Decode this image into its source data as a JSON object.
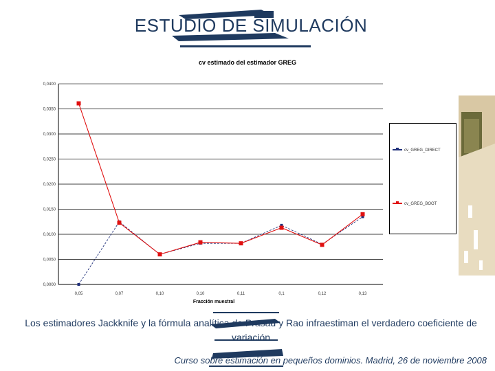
{
  "slide": {
    "title": "ESTUDIO DE SIMULACIÓN",
    "caption": "Los estimadores Jackknife y la fórmula analítica de Prasad y Rao infraestiman el verdadero coeficiente de variación",
    "footer": "Curso sobre estimación en pequeños dominios. Madrid, 26 de noviembre 2008"
  },
  "colors": {
    "title": "#1f3a5f",
    "series_direct": "#1f2f7a",
    "series_greg": "#e01010",
    "gridline": "#000000"
  },
  "chart_data": {
    "type": "line",
    "title": "cv estimado del estimador GREG",
    "xlabel": "Fracción muestral",
    "ylabel": "",
    "categories": [
      "0,05",
      "0,07",
      "0,10",
      "0,10",
      "0,11",
      "0,1",
      "0,12",
      "0,13"
    ],
    "ylim": [
      0,
      0.04
    ],
    "yticks": [
      "0,0400",
      "0,0350",
      "0,0300",
      "0,0250",
      "0,0200",
      "0,0150",
      "0,0100",
      "0,0050",
      "0,0000"
    ],
    "grid": true,
    "legend": "right",
    "series": [
      {
        "name": "cv_GREG_DIRECT",
        "color": "#1f2f7a",
        "values": [
          0.0,
          0.0125,
          0.006,
          0.0082,
          0.0082,
          0.0118,
          0.008,
          0.0135
        ]
      },
      {
        "name": "cv_GREG_BOOT",
        "color": "#e01010",
        "values": [
          0.0361,
          0.0123,
          0.006,
          0.0084,
          0.0082,
          0.0113,
          0.0079,
          0.014
        ]
      }
    ]
  }
}
